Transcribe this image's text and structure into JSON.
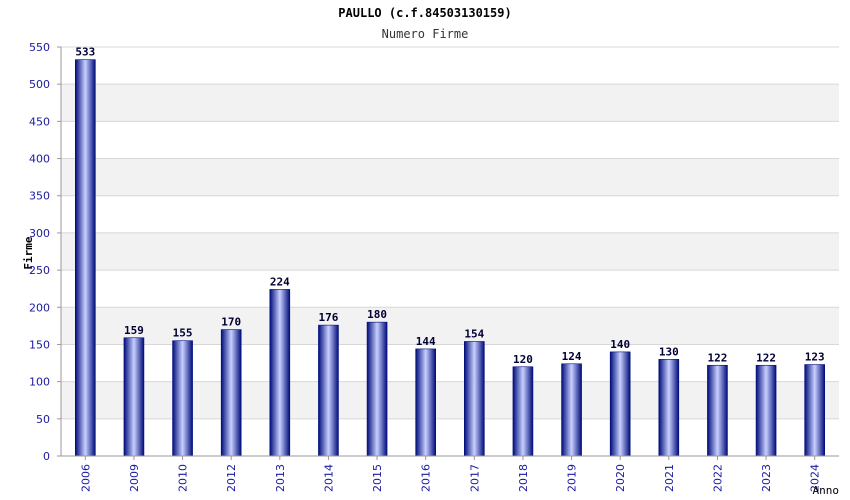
{
  "chart_data": {
    "type": "bar",
    "title": "PAULLO (c.f.84503130159)",
    "subtitle": "Numero Firme",
    "xlabel": "Anno",
    "ylabel": "Firme",
    "ylim": [
      0,
      550
    ],
    "yticks": [
      0,
      50,
      100,
      150,
      200,
      250,
      300,
      350,
      400,
      450,
      500,
      550
    ],
    "grid": true,
    "categories": [
      "2006",
      "2009",
      "2010",
      "2012",
      "2013",
      "2014",
      "2015",
      "2016",
      "2017",
      "2018",
      "2019",
      "2020",
      "2021",
      "2022",
      "2023",
      "2024"
    ],
    "values": [
      533,
      159,
      155,
      170,
      224,
      176,
      180,
      144,
      154,
      120,
      124,
      140,
      130,
      122,
      122,
      123
    ],
    "colors": {
      "bar_dark": "#000c7a",
      "bar_light": "#c8d0ff",
      "tick_label": "#1a1aa0",
      "band": "#f2f2f2",
      "grid": "#d8d8d8"
    }
  }
}
